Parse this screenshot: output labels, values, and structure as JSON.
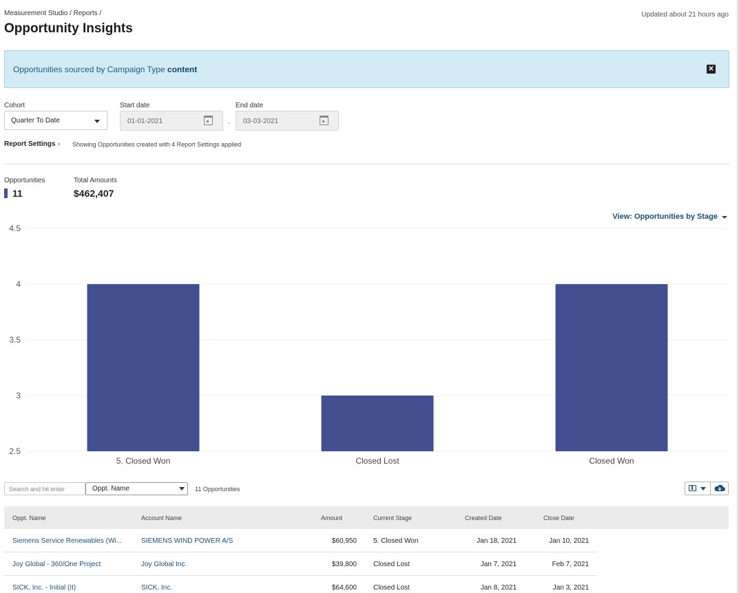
{
  "header": {
    "breadcrumb": "Measurement Studio / Reports /",
    "title": "Opportunity Insights",
    "updated": "Updated about 21 hours ago"
  },
  "banner": {
    "prefix": "Opportunities sourced by Campaign Type ",
    "highlight": "content",
    "close_label": "✕"
  },
  "filters": {
    "cohort_label": "Cohort",
    "cohort_value": "Quarter To Date",
    "start_label": "Start date",
    "start_value": "01-01-2021",
    "end_label": "End date",
    "end_value": "03-03-2021",
    "date_separator": "-"
  },
  "report_settings": {
    "link_label": "Report Settings",
    "chevron": "›",
    "note": "Showing Opportunities created with 4 Report Settings applied"
  },
  "metrics": {
    "opportunities_label": "Opportunities",
    "opportunities_value": "11",
    "total_label": "Total Amounts",
    "total_value": "$462,407",
    "series_color": "#444f8f"
  },
  "view": {
    "label": "View: Opportunities by Stage"
  },
  "chart_data": {
    "type": "bar",
    "categories": [
      "5. Closed Won",
      "Closed Lost",
      "Closed Won"
    ],
    "values": [
      4,
      3,
      4
    ],
    "ylim": [
      2.5,
      4.5
    ],
    "yticks": [
      "4.5",
      "4",
      "3.5",
      "3",
      "2.5"
    ],
    "grid": true,
    "xlabel": "",
    "ylabel": "",
    "color": "#444f8f"
  },
  "table_controls": {
    "search_placeholder": "Search and hit enter",
    "column_selected": "Oppt. Name",
    "count_text": "11 Opportunities"
  },
  "table": {
    "headers": [
      "Oppt. Name",
      "Account Name",
      "Amount",
      "Current Stage",
      "Created Date",
      "Close Date"
    ],
    "rows": [
      [
        "Siemens Service Renewables (Wi...",
        "SIEMENS WIND POWER A/S",
        "$60,950",
        "5. Closed Won",
        "Jan 18, 2021",
        "Jan 10, 2021"
      ],
      [
        "Joy Global - 360/One Project",
        "Joy Global Inc.",
        "$39,800",
        "Closed Lost",
        "Jan 7, 2021",
        "Feb 7, 2021"
      ],
      [
        "SICK, Inc. - Initial (II)",
        "SICK, Inc.",
        "$64,600",
        "Closed Lost",
        "Jan 8, 2021",
        "Jan 3, 2021"
      ]
    ]
  }
}
